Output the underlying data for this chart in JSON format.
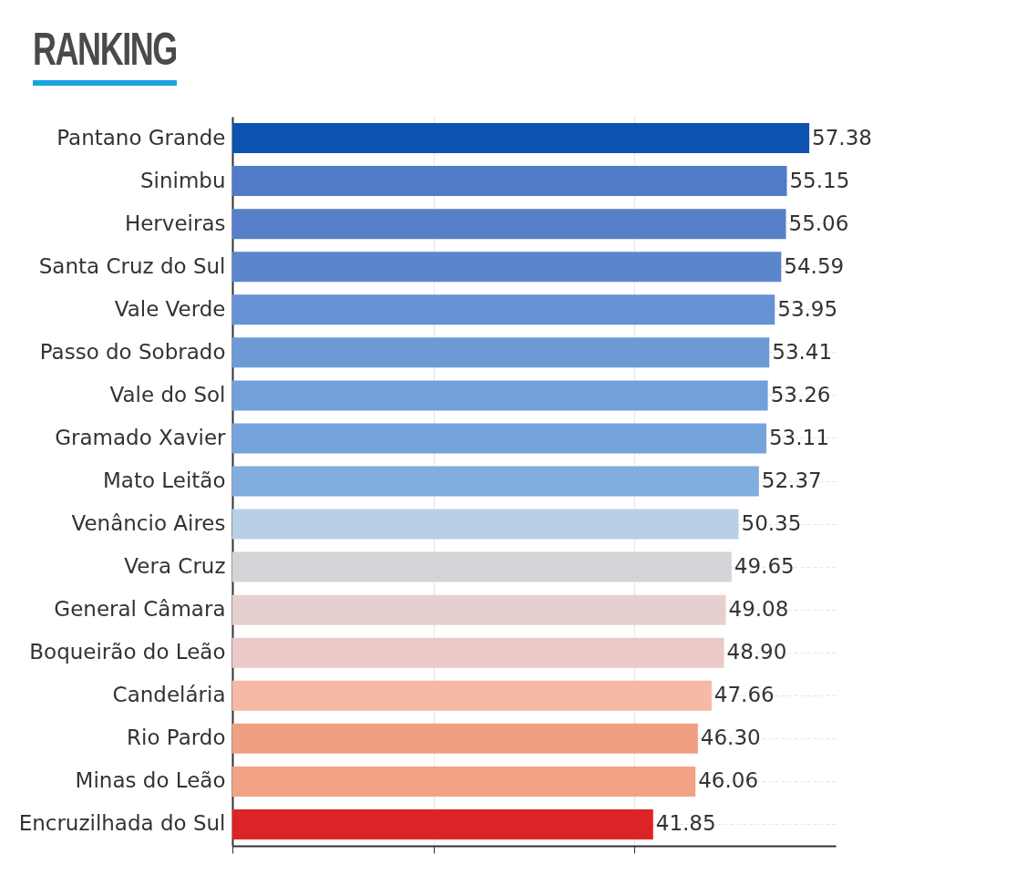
{
  "chart_data": {
    "type": "bar",
    "title": "RANKING",
    "orientation": "horizontal",
    "categories": [
      "Pantano Grande",
      "Sinimbu",
      "Herveiras",
      "Santa Cruz do Sul",
      "Vale Verde",
      "Passo do Sobrado",
      "Vale do Sol",
      "Gramado Xavier",
      "Mato Leitão",
      "Venâncio Aires",
      "Vera Cruz",
      "General Câmara",
      "Boqueirão do Leão",
      "Candelária",
      "Rio Pardo",
      "Minas do Leão",
      "Encruzilhada do Sul"
    ],
    "values": [
      57.38,
      55.15,
      55.06,
      54.59,
      53.95,
      53.41,
      53.26,
      53.11,
      52.37,
      50.35,
      49.65,
      49.08,
      48.9,
      47.66,
      46.3,
      46.06,
      41.85
    ],
    "value_labels": [
      "57.38",
      "55.15",
      "55.06",
      "54.59",
      "53.95",
      "53.41",
      "53.26",
      "53.11",
      "52.37",
      "50.35",
      "49.65",
      "49.08",
      "48.90",
      "47.66",
      "46.30",
      "46.06",
      "41.85"
    ],
    "colors": [
      "#0d52b0",
      "#4f7bc8",
      "#5580c9",
      "#5b86cc",
      "#6691d4",
      "#6f9ad8",
      "#72a0db",
      "#75a3dc",
      "#82addf",
      "#b8cfe8",
      "#d2d4d8",
      "#e6d0cf",
      "#ebc9c8",
      "#f5b9a5",
      "#f0a080",
      "#f2a383",
      "#dc2326"
    ],
    "xlim": [
      0,
      60
    ],
    "xticks": [
      {
        "value": 0,
        "label": null
      },
      {
        "value": 20,
        "label": null
      },
      {
        "value": 40,
        "label": null
      }
    ],
    "tick_labels": "y",
    "grid": true
  }
}
